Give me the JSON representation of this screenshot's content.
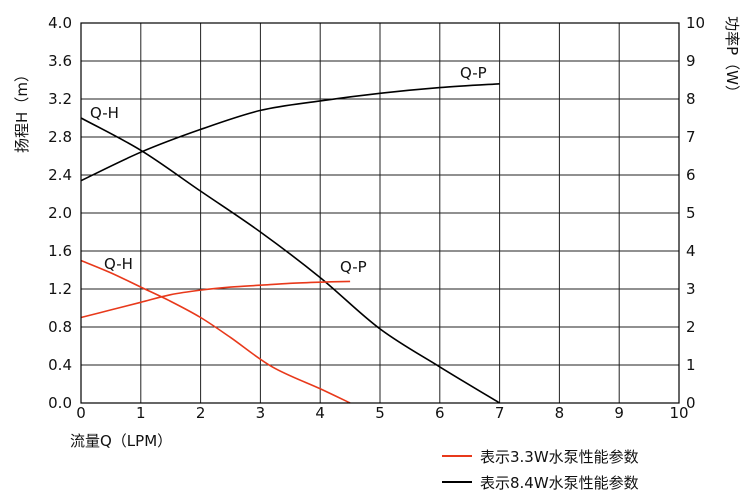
{
  "chart_data": {
    "type": "line",
    "x_title": "流量Q（LPM）",
    "y_left_title": "扬程H（m）",
    "y_right_title": "功率P（W）",
    "xlim": [
      0,
      10
    ],
    "ylim_left": [
      0,
      4.0
    ],
    "ylim_right": [
      0,
      10
    ],
    "x_ticks": [
      "0",
      "1",
      "2",
      "3",
      "4",
      "5",
      "6",
      "7",
      "8",
      "9",
      "10"
    ],
    "y_left_ticks": [
      "0.0",
      "0.4",
      "0.8",
      "1.2",
      "1.6",
      "2.0",
      "2.4",
      "2.8",
      "3.2",
      "3.6",
      "4.0"
    ],
    "y_right_ticks": [
      "0",
      "1",
      "2",
      "3",
      "4",
      "5",
      "6",
      "7",
      "8",
      "9",
      "10"
    ],
    "grid": true,
    "legend_position": "bottom-right",
    "series": [
      {
        "pump": "表示8.4W水泵性能参数",
        "curve": "Q-H",
        "axis": "left",
        "color": "#000000",
        "x": [
          0,
          1,
          2,
          3,
          4,
          5,
          6,
          7
        ],
        "y": [
          3.0,
          2.66,
          2.23,
          1.8,
          1.32,
          0.78,
          0.38,
          0.0
        ]
      },
      {
        "pump": "表示8.4W水泵性能参数",
        "curve": "Q-P",
        "axis": "right",
        "color": "#000000",
        "x": [
          0,
          1,
          2,
          3,
          4,
          5,
          6,
          7
        ],
        "y": [
          5.85,
          6.6,
          7.2,
          7.7,
          7.95,
          8.15,
          8.3,
          8.4
        ]
      },
      {
        "pump": "表示3.3W水泵性能参数",
        "curve": "Q-H",
        "axis": "left",
        "color": "#e8391b",
        "x": [
          0,
          0.5,
          1,
          1.5,
          2,
          2.5,
          3.2,
          4,
          4.5
        ],
        "y": [
          1.5,
          1.37,
          1.22,
          1.07,
          0.9,
          0.69,
          0.38,
          0.15,
          0.0
        ]
      },
      {
        "pump": "表示3.3W水泵性能参数",
        "curve": "Q-P",
        "axis": "right",
        "color": "#e8391b",
        "x": [
          0,
          0.5,
          1,
          1.5,
          2,
          2.5,
          3,
          3.5,
          4,
          4.5
        ],
        "y": [
          2.25,
          2.45,
          2.65,
          2.85,
          2.97,
          3.05,
          3.1,
          3.15,
          3.18,
          3.2
        ]
      }
    ],
    "curve_labels": [
      {
        "text": "Q-P",
        "series": 1
      },
      {
        "text": "Q-H",
        "series": 0
      },
      {
        "text": "Q-H",
        "series": 2
      },
      {
        "text": "Q-P",
        "series": 3
      }
    ],
    "legend": [
      {
        "label": "表示3.3W水泵性能参数",
        "color": "#e8391b"
      },
      {
        "label": "表示8.4W水泵性能参数",
        "color": "#000000"
      }
    ]
  }
}
